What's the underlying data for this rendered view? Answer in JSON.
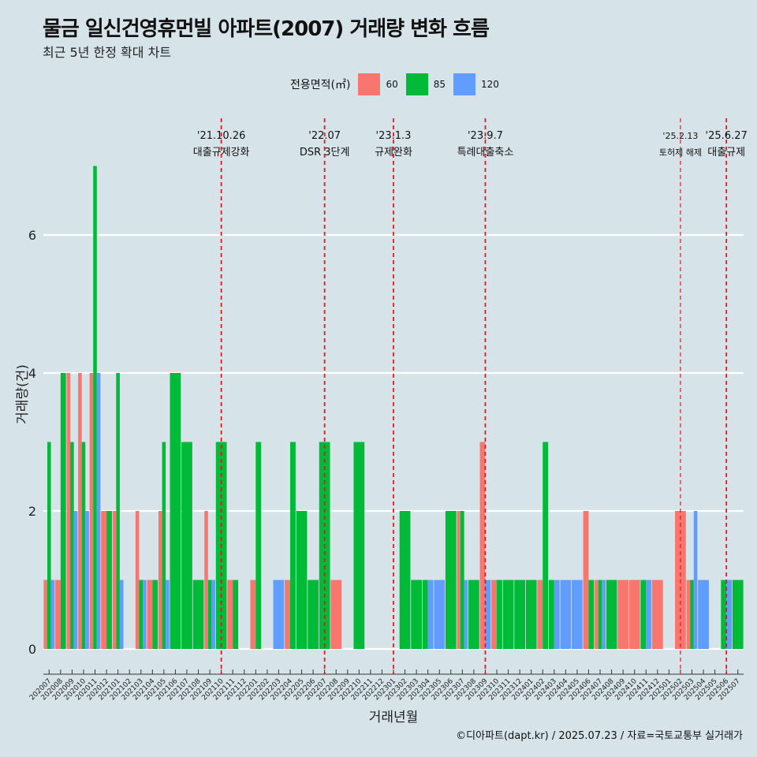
{
  "chart_data": {
    "type": "bar",
    "title": "물금 일신건영휴먼빌 아파트(2007) 거래량 변화 흐름",
    "subtitle": "최근 5년 한정 확대 차트",
    "xlabel": "거래년월",
    "ylabel": "거래량(건)",
    "legend_title": "전용면적(㎡)",
    "legend_position": "top",
    "ylim": [
      0,
      7
    ],
    "y_ticks": [
      0,
      2,
      4,
      6
    ],
    "grid": true,
    "caption": "©디아파트(dapt.kr) / 2025.07.23 / 자료=국토교통부 실거래가",
    "colors": {
      "60": "#f8766d",
      "85": "#00ba38",
      "120": "#619cff",
      "vline": "#e8161b",
      "grid": "#ffffff"
    },
    "categories": [
      "202007",
      "202008",
      "202009",
      "202010",
      "202011",
      "202012",
      "202101",
      "202102",
      "202103",
      "202104",
      "202105",
      "202106",
      "202107",
      "202108",
      "202109",
      "202110",
      "202111",
      "202112",
      "202201",
      "202202",
      "202203",
      "202204",
      "202205",
      "202206",
      "202207",
      "202208",
      "202209",
      "202210",
      "202211",
      "202212",
      "202301",
      "202302",
      "202303",
      "202304",
      "202305",
      "202306",
      "202307",
      "202308",
      "202309",
      "202310",
      "202311",
      "202312",
      "202401",
      "202402",
      "202403",
      "202404",
      "202405",
      "202406",
      "202407",
      "202408",
      "202409",
      "202410",
      "202411",
      "202412",
      "202501",
      "202502",
      "202503",
      "202504",
      "202505",
      "202506",
      "202507"
    ],
    "tick_labels": [
      "202007",
      "202008",
      "202009",
      "202010",
      "202011",
      "202012",
      "202101",
      "202102",
      "202103",
      "202104",
      "202105",
      "202106",
      "202107",
      "202108",
      "202109",
      "202110",
      "202111",
      "202112",
      "202201",
      "202202",
      "202203",
      "202204",
      "202205",
      "202206",
      "202207",
      "202208",
      "202209",
      "202210",
      "202211",
      "202212",
      "202301",
      "202302",
      "202303",
      "202304",
      "202305",
      "202306",
      "202307",
      "202308",
      "202309",
      "202310",
      "202311",
      "202312",
      "202401",
      "202402",
      "202403",
      "202404",
      "202405",
      "202406",
      "202407",
      "202408",
      "202409",
      "202410",
      "202411",
      "202412",
      "202501",
      "202502",
      "202503",
      "202504",
      "202505",
      "202506",
      "202507"
    ],
    "series": [
      {
        "name": "60",
        "values": [
          1,
          1,
          4,
          4,
          4,
          2,
          2,
          0,
          2,
          1,
          2,
          0,
          0,
          0,
          2,
          0,
          1,
          0,
          1,
          0,
          0,
          1,
          0,
          0,
          0,
          1,
          0,
          0,
          0,
          0,
          0,
          0,
          0,
          0,
          0,
          0,
          2,
          0,
          3,
          1,
          0,
          0,
          0,
          1,
          0,
          0,
          0,
          2,
          1,
          0,
          1,
          1,
          0,
          1,
          0,
          2,
          1,
          0,
          0,
          0,
          0
        ]
      },
      {
        "name": "85",
        "values": [
          3,
          4,
          3,
          3,
          7,
          2,
          4,
          0,
          1,
          1,
          3,
          4,
          3,
          1,
          1,
          3,
          1,
          0,
          3,
          0,
          0,
          3,
          2,
          1,
          3,
          0,
          0,
          3,
          0,
          0,
          0,
          2,
          1,
          1,
          0,
          2,
          2,
          1,
          0,
          1,
          1,
          1,
          1,
          3,
          1,
          0,
          0,
          1,
          1,
          1,
          0,
          0,
          1,
          0,
          0,
          0,
          1,
          0,
          0,
          1,
          1
        ]
      },
      {
        "name": "120",
        "values": [
          1,
          0,
          2,
          2,
          4,
          0,
          1,
          0,
          1,
          0,
          1,
          0,
          0,
          0,
          1,
          0,
          0,
          0,
          0,
          0,
          1,
          0,
          0,
          0,
          0,
          0,
          0,
          0,
          0,
          0,
          0,
          0,
          0,
          1,
          1,
          0,
          1,
          0,
          1,
          0,
          0,
          0,
          0,
          0,
          1,
          1,
          1,
          0,
          1,
          0,
          0,
          0,
          1,
          0,
          0,
          0,
          2,
          1,
          0,
          1,
          0
        ]
      }
    ],
    "annotations": [
      {
        "x": "202110",
        "date": "'21.10.26",
        "text": "대출규제강화"
      },
      {
        "x": "202207",
        "date": "'22.07",
        "text": "DSR 3단계"
      },
      {
        "x": "202301",
        "date": "'23.1.3",
        "text": "규제완화"
      },
      {
        "x": "202309",
        "date": "'23.9.7",
        "text": "특례대출축소"
      },
      {
        "x": "202502",
        "date": "'25.2.13",
        "text": "토허제 해제",
        "small": true
      },
      {
        "x": "202506",
        "date": "'25.6.27",
        "text": "대출규제"
      }
    ]
  }
}
